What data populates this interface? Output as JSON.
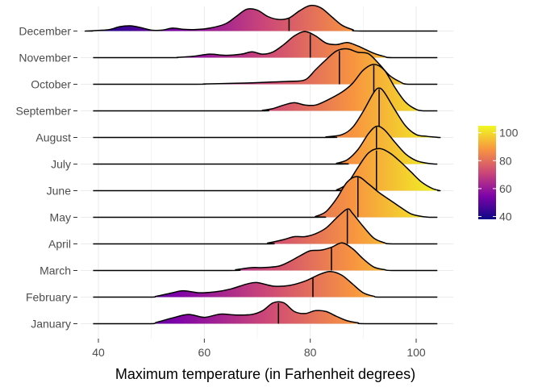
{
  "chart_data": {
    "type": "ridgeline",
    "title": "",
    "xlabel": "Maximum temperature (in Farhenheit degrees)",
    "ylabel": "",
    "xlim": [
      37,
      107
    ],
    "x_ticks": [
      40,
      60,
      80,
      100
    ],
    "grid": true,
    "legend": {
      "placement": "right",
      "type": "colorbar",
      "range": [
        38,
        105
      ],
      "ticks": [
        40,
        60,
        80,
        100
      ],
      "colors": [
        "#0d0887",
        "#7e03a8",
        "#cc4778",
        "#f89540",
        "#f0f921"
      ]
    },
    "line_color": "#000000",
    "series": [
      {
        "name": "January",
        "median": 74,
        "density": [
          [
            51,
            0.05
          ],
          [
            54,
            0.2
          ],
          [
            57,
            0.32
          ],
          [
            60,
            0.22
          ],
          [
            63,
            0.33
          ],
          [
            66,
            0.3
          ],
          [
            69,
            0.32
          ],
          [
            71,
            0.45
          ],
          [
            73,
            0.72
          ],
          [
            75,
            0.72
          ],
          [
            77,
            0.42
          ],
          [
            79,
            0.35
          ],
          [
            81,
            0.45
          ],
          [
            83,
            0.42
          ],
          [
            85,
            0.25
          ],
          [
            87,
            0.1
          ],
          [
            89,
            0.03
          ]
        ]
      },
      {
        "name": "February",
        "median": 80.5,
        "density": [
          [
            51,
            0.03
          ],
          [
            54,
            0.15
          ],
          [
            56,
            0.22
          ],
          [
            59,
            0.15
          ],
          [
            62,
            0.18
          ],
          [
            65,
            0.28
          ],
          [
            68,
            0.45
          ],
          [
            70,
            0.5
          ],
          [
            73,
            0.38
          ],
          [
            76,
            0.4
          ],
          [
            79,
            0.55
          ],
          [
            82,
            0.8
          ],
          [
            84,
            0.88
          ],
          [
            86,
            0.75
          ],
          [
            88,
            0.45
          ],
          [
            90,
            0.15
          ],
          [
            92,
            0.03
          ]
        ]
      },
      {
        "name": "March",
        "median": 84,
        "density": [
          [
            66,
            0.03
          ],
          [
            69,
            0.1
          ],
          [
            71,
            0.1
          ],
          [
            74,
            0.15
          ],
          [
            76,
            0.3
          ],
          [
            78,
            0.5
          ],
          [
            80,
            0.68
          ],
          [
            82,
            0.7
          ],
          [
            84,
            0.8
          ],
          [
            86,
            0.95
          ],
          [
            88,
            0.75
          ],
          [
            90,
            0.4
          ],
          [
            92,
            0.12
          ],
          [
            94,
            0.03
          ]
        ]
      },
      {
        "name": "April",
        "median": 87,
        "density": [
          [
            72,
            0.03
          ],
          [
            75,
            0.15
          ],
          [
            77,
            0.25
          ],
          [
            79,
            0.25
          ],
          [
            81,
            0.35
          ],
          [
            83,
            0.55
          ],
          [
            85,
            0.9
          ],
          [
            87,
            1.2
          ],
          [
            88,
            1.05
          ],
          [
            90,
            0.6
          ],
          [
            92,
            0.2
          ],
          [
            94,
            0.04
          ]
        ]
      },
      {
        "name": "May",
        "median": 89,
        "density": [
          [
            81,
            0.03
          ],
          [
            83,
            0.2
          ],
          [
            85,
            0.65
          ],
          [
            87,
            1.22
          ],
          [
            89,
            1.4
          ],
          [
            91,
            1.15
          ],
          [
            93,
            0.85
          ],
          [
            95,
            0.6
          ],
          [
            97,
            0.35
          ],
          [
            99,
            0.12
          ],
          [
            101,
            0.03
          ]
        ]
      },
      {
        "name": "June",
        "median": 92.5,
        "density": [
          [
            85,
            0.03
          ],
          [
            87,
            0.25
          ],
          [
            89,
            0.8
          ],
          [
            91,
            1.3
          ],
          [
            93,
            1.45
          ],
          [
            95,
            1.3
          ],
          [
            97,
            1.0
          ],
          [
            99,
            0.65
          ],
          [
            101,
            0.3
          ],
          [
            103,
            0.08
          ]
        ]
      },
      {
        "name": "July",
        "median": 92.5,
        "density": [
          [
            85,
            0.03
          ],
          [
            87,
            0.15
          ],
          [
            89,
            0.5
          ],
          [
            91,
            1.05
          ],
          [
            92.5,
            1.3
          ],
          [
            94,
            1.18
          ],
          [
            96,
            0.75
          ],
          [
            98,
            0.35
          ],
          [
            100,
            0.12
          ],
          [
            102,
            0.03
          ]
        ]
      },
      {
        "name": "August",
        "median": 93,
        "density": [
          [
            83,
            0.02
          ],
          [
            86,
            0.1
          ],
          [
            88,
            0.35
          ],
          [
            90,
            0.9
          ],
          [
            92,
            1.55
          ],
          [
            93,
            1.7
          ],
          [
            94,
            1.55
          ],
          [
            96,
            0.95
          ],
          [
            98,
            0.4
          ],
          [
            100,
            0.1
          ],
          [
            102,
            0.04
          ],
          [
            103,
            0.02
          ]
        ]
      },
      {
        "name": "September",
        "median": 92,
        "density": [
          [
            71,
            0.02
          ],
          [
            73,
            0.08
          ],
          [
            75,
            0.2
          ],
          [
            77,
            0.28
          ],
          [
            79,
            0.2
          ],
          [
            81,
            0.2
          ],
          [
            83,
            0.35
          ],
          [
            86,
            0.65
          ],
          [
            88,
            0.95
          ],
          [
            90,
            1.4
          ],
          [
            92,
            1.6
          ],
          [
            94,
            1.4
          ],
          [
            96,
            0.8
          ],
          [
            98,
            0.3
          ],
          [
            100,
            0.05
          ]
        ]
      },
      {
        "name": "October",
        "median": 85.5,
        "density": [
          [
            60,
            0.01
          ],
          [
            65,
            0.03
          ],
          [
            69,
            0.05
          ],
          [
            73,
            0.08
          ],
          [
            76,
            0.1
          ],
          [
            79,
            0.15
          ],
          [
            81,
            0.5
          ],
          [
            83,
            0.85
          ],
          [
            85,
            1.15
          ],
          [
            87,
            1.22
          ],
          [
            89,
            1.1
          ],
          [
            91,
            1.05
          ],
          [
            93,
            0.7
          ],
          [
            95,
            0.3
          ],
          [
            97,
            0.08
          ]
        ]
      },
      {
        "name": "November",
        "median": 80,
        "density": [
          [
            55,
            0.01
          ],
          [
            58,
            0.05
          ],
          [
            61,
            0.12
          ],
          [
            64,
            0.08
          ],
          [
            67,
            0.12
          ],
          [
            69,
            0.2
          ],
          [
            71,
            0.12
          ],
          [
            73,
            0.2
          ],
          [
            75,
            0.45
          ],
          [
            77,
            0.75
          ],
          [
            79,
            0.9
          ],
          [
            81,
            0.75
          ],
          [
            83,
            0.5
          ],
          [
            85,
            0.45
          ],
          [
            87,
            0.52
          ],
          [
            89,
            0.4
          ],
          [
            92,
            0.15
          ],
          [
            94,
            0.04
          ]
        ]
      },
      {
        "name": "December",
        "median": 76,
        "density": [
          [
            39,
            0.01
          ],
          [
            42,
            0.05
          ],
          [
            44,
            0.15
          ],
          [
            46,
            0.18
          ],
          [
            48,
            0.12
          ],
          [
            50,
            0.03
          ],
          [
            52,
            0.03
          ],
          [
            54,
            0.1
          ],
          [
            56,
            0.06
          ],
          [
            58,
            0.05
          ],
          [
            61,
            0.1
          ],
          [
            64,
            0.25
          ],
          [
            66,
            0.5
          ],
          [
            68,
            0.75
          ],
          [
            70,
            0.72
          ],
          [
            72,
            0.5
          ],
          [
            74,
            0.4
          ],
          [
            76,
            0.45
          ],
          [
            78,
            0.7
          ],
          [
            80,
            0.88
          ],
          [
            82,
            0.8
          ],
          [
            84,
            0.5
          ],
          [
            86,
            0.2
          ],
          [
            88,
            0.05
          ]
        ]
      }
    ]
  }
}
